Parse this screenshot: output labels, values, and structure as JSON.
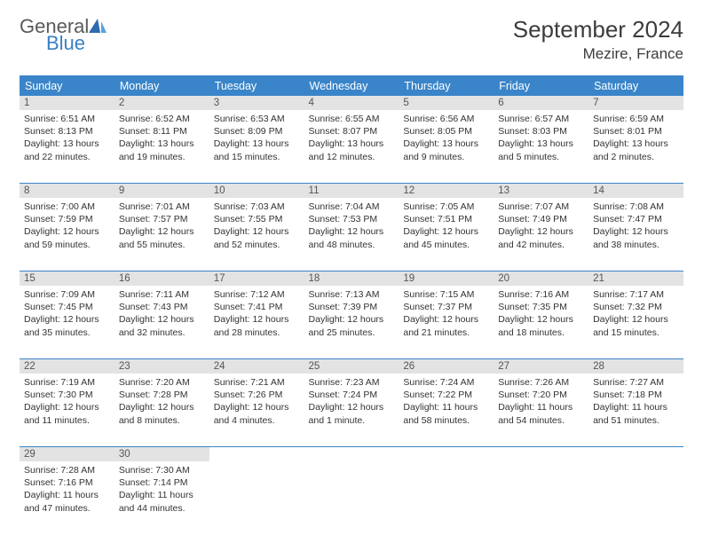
{
  "brand": {
    "name_top": "General",
    "name_bottom": "Blue"
  },
  "title": "September 2024",
  "location": "Mezire, France",
  "colors": {
    "header_bg": "#3a85c9",
    "header_text": "#ffffff",
    "daynum_bg": "#e3e3e3",
    "divider": "#3a85c9",
    "text": "#333333",
    "logo_gray": "#5a5a5a",
    "logo_blue": "#3a7fc4"
  },
  "day_headers": [
    "Sunday",
    "Monday",
    "Tuesday",
    "Wednesday",
    "Thursday",
    "Friday",
    "Saturday"
  ],
  "weeks": [
    [
      {
        "n": "1",
        "sr": "6:51 AM",
        "ss": "8:13 PM",
        "dl": "13 hours and 22 minutes."
      },
      {
        "n": "2",
        "sr": "6:52 AM",
        "ss": "8:11 PM",
        "dl": "13 hours and 19 minutes."
      },
      {
        "n": "3",
        "sr": "6:53 AM",
        "ss": "8:09 PM",
        "dl": "13 hours and 15 minutes."
      },
      {
        "n": "4",
        "sr": "6:55 AM",
        "ss": "8:07 PM",
        "dl": "13 hours and 12 minutes."
      },
      {
        "n": "5",
        "sr": "6:56 AM",
        "ss": "8:05 PM",
        "dl": "13 hours and 9 minutes."
      },
      {
        "n": "6",
        "sr": "6:57 AM",
        "ss": "8:03 PM",
        "dl": "13 hours and 5 minutes."
      },
      {
        "n": "7",
        "sr": "6:59 AM",
        "ss": "8:01 PM",
        "dl": "13 hours and 2 minutes."
      }
    ],
    [
      {
        "n": "8",
        "sr": "7:00 AM",
        "ss": "7:59 PM",
        "dl": "12 hours and 59 minutes."
      },
      {
        "n": "9",
        "sr": "7:01 AM",
        "ss": "7:57 PM",
        "dl": "12 hours and 55 minutes."
      },
      {
        "n": "10",
        "sr": "7:03 AM",
        "ss": "7:55 PM",
        "dl": "12 hours and 52 minutes."
      },
      {
        "n": "11",
        "sr": "7:04 AM",
        "ss": "7:53 PM",
        "dl": "12 hours and 48 minutes."
      },
      {
        "n": "12",
        "sr": "7:05 AM",
        "ss": "7:51 PM",
        "dl": "12 hours and 45 minutes."
      },
      {
        "n": "13",
        "sr": "7:07 AM",
        "ss": "7:49 PM",
        "dl": "12 hours and 42 minutes."
      },
      {
        "n": "14",
        "sr": "7:08 AM",
        "ss": "7:47 PM",
        "dl": "12 hours and 38 minutes."
      }
    ],
    [
      {
        "n": "15",
        "sr": "7:09 AM",
        "ss": "7:45 PM",
        "dl": "12 hours and 35 minutes."
      },
      {
        "n": "16",
        "sr": "7:11 AM",
        "ss": "7:43 PM",
        "dl": "12 hours and 32 minutes."
      },
      {
        "n": "17",
        "sr": "7:12 AM",
        "ss": "7:41 PM",
        "dl": "12 hours and 28 minutes."
      },
      {
        "n": "18",
        "sr": "7:13 AM",
        "ss": "7:39 PM",
        "dl": "12 hours and 25 minutes."
      },
      {
        "n": "19",
        "sr": "7:15 AM",
        "ss": "7:37 PM",
        "dl": "12 hours and 21 minutes."
      },
      {
        "n": "20",
        "sr": "7:16 AM",
        "ss": "7:35 PM",
        "dl": "12 hours and 18 minutes."
      },
      {
        "n": "21",
        "sr": "7:17 AM",
        "ss": "7:32 PM",
        "dl": "12 hours and 15 minutes."
      }
    ],
    [
      {
        "n": "22",
        "sr": "7:19 AM",
        "ss": "7:30 PM",
        "dl": "12 hours and 11 minutes."
      },
      {
        "n": "23",
        "sr": "7:20 AM",
        "ss": "7:28 PM",
        "dl": "12 hours and 8 minutes."
      },
      {
        "n": "24",
        "sr": "7:21 AM",
        "ss": "7:26 PM",
        "dl": "12 hours and 4 minutes."
      },
      {
        "n": "25",
        "sr": "7:23 AM",
        "ss": "7:24 PM",
        "dl": "12 hours and 1 minute."
      },
      {
        "n": "26",
        "sr": "7:24 AM",
        "ss": "7:22 PM",
        "dl": "11 hours and 58 minutes."
      },
      {
        "n": "27",
        "sr": "7:26 AM",
        "ss": "7:20 PM",
        "dl": "11 hours and 54 minutes."
      },
      {
        "n": "28",
        "sr": "7:27 AM",
        "ss": "7:18 PM",
        "dl": "11 hours and 51 minutes."
      }
    ],
    [
      {
        "n": "29",
        "sr": "7:28 AM",
        "ss": "7:16 PM",
        "dl": "11 hours and 47 minutes."
      },
      {
        "n": "30",
        "sr": "7:30 AM",
        "ss": "7:14 PM",
        "dl": "11 hours and 44 minutes."
      },
      null,
      null,
      null,
      null,
      null
    ]
  ],
  "labels": {
    "sunrise": "Sunrise:",
    "sunset": "Sunset:",
    "daylight": "Daylight:"
  }
}
